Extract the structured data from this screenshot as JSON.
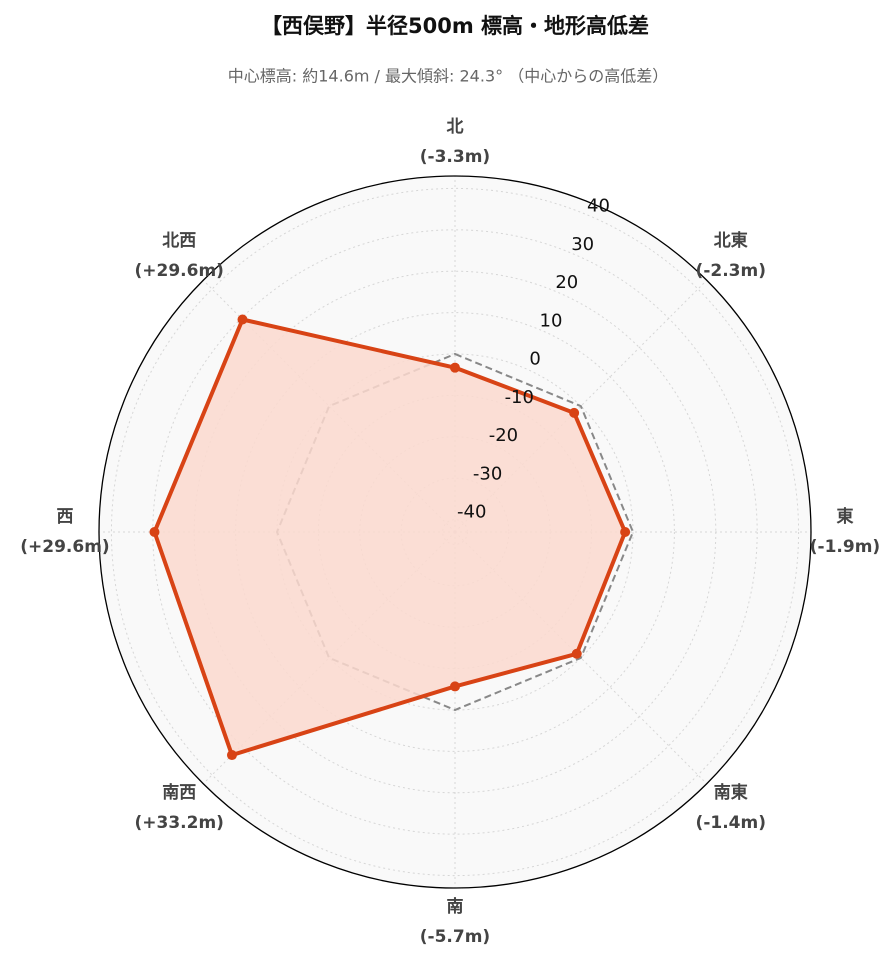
{
  "chart_data": {
    "type": "radar",
    "title": "【西俣野】半径500m 標高・地形高低差",
    "subtitle": "中心標高: 約14.6m / 最大傾斜: 24.3° （中心からの高低差）",
    "categories": [
      "北",
      "北東",
      "東",
      "南東",
      "南",
      "南西",
      "西",
      "北西"
    ],
    "values": [
      -3.3,
      -2.3,
      -1.9,
      -1.4,
      -5.7,
      33.2,
      29.6,
      29.6
    ],
    "value_labels": [
      "(-3.3m)",
      "(-2.3m)",
      "(-1.9m)",
      "(-1.4m)",
      "(-5.7m)",
      "(+33.2m)",
      "(+29.6m)",
      "(+29.6m)"
    ],
    "color": "#d84315",
    "fill_color": "#fbd9cf",
    "reference_line": 0,
    "ylim": [
      -43,
      43
    ],
    "yticks": [
      -40,
      -30,
      -20,
      -10,
      0,
      10,
      20,
      30,
      40
    ],
    "grid": true
  }
}
